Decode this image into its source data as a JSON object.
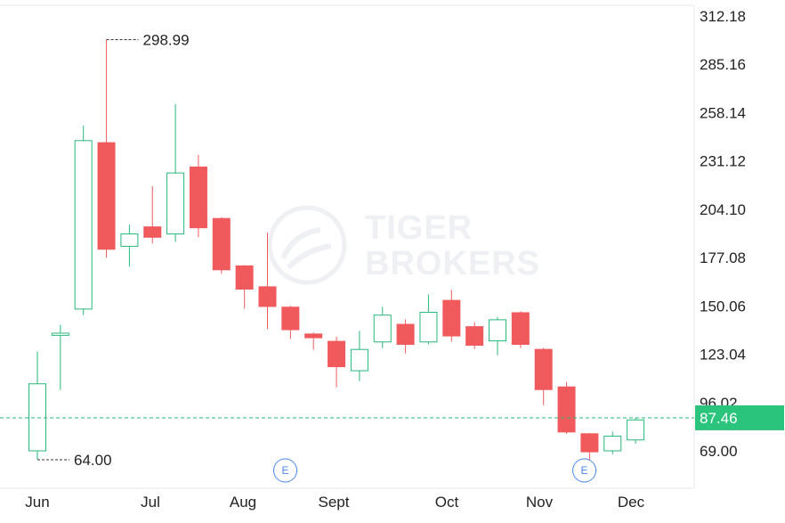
{
  "chart_data": {
    "type": "candlestick",
    "interval": "weekly",
    "x_labels": [
      "Jun",
      "Jul",
      "Aug",
      "Sept",
      "Oct",
      "Nov",
      "Dec"
    ],
    "y_ticks": [
      "312.18",
      "285.16",
      "258.14",
      "231.12",
      "204.10",
      "177.08",
      "150.06",
      "123.04",
      "96.02",
      "69.00"
    ],
    "ylim": [
      60,
      318
    ],
    "grid": false,
    "candles": [
      {
        "o": 69.0,
        "h": 124.5,
        "l": 64.0,
        "c": 106.5,
        "dir": "up"
      },
      {
        "o": 133.6,
        "h": 139.5,
        "l": 103.0,
        "c": 134.8,
        "dir": "up"
      },
      {
        "o": 148.3,
        "h": 251.0,
        "l": 145.0,
        "c": 242.5,
        "dir": "up"
      },
      {
        "o": 241.6,
        "h": 298.99,
        "l": 177.0,
        "c": 181.5,
        "dir": "down"
      },
      {
        "o": 183.4,
        "h": 195.5,
        "l": 172.0,
        "c": 190.3,
        "dir": "up"
      },
      {
        "o": 194.5,
        "h": 217.0,
        "l": 185.0,
        "c": 188.2,
        "dir": "down"
      },
      {
        "o": 190.3,
        "h": 263.0,
        "l": 186.0,
        "c": 224.4,
        "dir": "up"
      },
      {
        "o": 228.0,
        "h": 234.5,
        "l": 188.5,
        "c": 193.5,
        "dir": "down"
      },
      {
        "o": 199.2,
        "h": 199.6,
        "l": 168.0,
        "c": 170.0,
        "dir": "down"
      },
      {
        "o": 172.7,
        "h": 172.9,
        "l": 148.5,
        "c": 159.2,
        "dir": "down"
      },
      {
        "o": 161.0,
        "h": 191.0,
        "l": 137.0,
        "c": 149.5,
        "dir": "down"
      },
      {
        "o": 149.6,
        "h": 150.1,
        "l": 131.5,
        "c": 136.5,
        "dir": "down"
      },
      {
        "o": 134.6,
        "h": 135.2,
        "l": 125.5,
        "c": 132.0,
        "dir": "down"
      },
      {
        "o": 130.5,
        "h": 132.8,
        "l": 104.5,
        "c": 115.8,
        "dir": "down"
      },
      {
        "o": 113.8,
        "h": 136.0,
        "l": 108.0,
        "c": 125.7,
        "dir": "up"
      },
      {
        "o": 129.9,
        "h": 149.5,
        "l": 126.5,
        "c": 144.9,
        "dir": "up"
      },
      {
        "o": 140.0,
        "h": 142.5,
        "l": 123.5,
        "c": 128.3,
        "dir": "down"
      },
      {
        "o": 129.9,
        "h": 156.5,
        "l": 128.5,
        "c": 146.5,
        "dir": "up"
      },
      {
        "o": 153.4,
        "h": 159.0,
        "l": 130.0,
        "c": 133.0,
        "dir": "down"
      },
      {
        "o": 138.7,
        "h": 141.0,
        "l": 126.0,
        "c": 127.8,
        "dir": "down"
      },
      {
        "o": 130.5,
        "h": 143.8,
        "l": 122.5,
        "c": 142.3,
        "dir": "up"
      },
      {
        "o": 146.5,
        "h": 147.0,
        "l": 126.5,
        "c": 128.3,
        "dir": "down"
      },
      {
        "o": 126.0,
        "h": 126.5,
        "l": 94.5,
        "c": 103.0,
        "dir": "down"
      },
      {
        "o": 105.0,
        "h": 107.5,
        "l": 78.5,
        "c": 79.3,
        "dir": "down"
      },
      {
        "o": 78.8,
        "h": 79.0,
        "l": 61.5,
        "c": 68.2,
        "dir": "down"
      },
      {
        "o": 69.0,
        "h": 79.7,
        "l": 67.0,
        "c": 77.2,
        "dir": "up"
      },
      {
        "o": 75.1,
        "h": 87.7,
        "l": 73.0,
        "c": 86.3,
        "dir": "up"
      }
    ],
    "annotations": [
      {
        "label": "298.99",
        "candle_index": 3,
        "type": "high"
      },
      {
        "label": "64.00",
        "candle_index": 0,
        "type": "low"
      }
    ],
    "events": [
      {
        "label": "E",
        "candle_index": 10
      },
      {
        "label": "E",
        "candle_index": 23
      }
    ],
    "current_price": {
      "label": "87.46",
      "value": 87.46
    }
  },
  "colors": {
    "up": "#26b87a",
    "down": "#f15a5c",
    "price_bg": "#2bc47c",
    "event": "#4a86e8",
    "axis": "#e6e8ec",
    "text": "#222222"
  },
  "watermark": {
    "line1": "TIGER",
    "line2": "BROKERS"
  }
}
